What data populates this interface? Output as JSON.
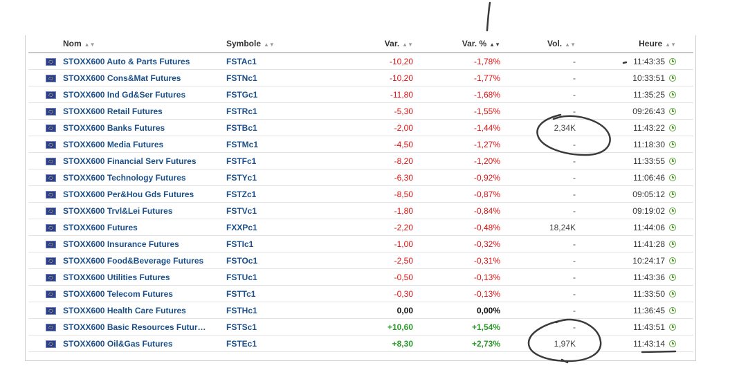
{
  "headers": {
    "name": "Nom",
    "symbol": "Symbole",
    "change": "Var.",
    "change_pct": "Var. %",
    "volume": "Vol.",
    "time": "Heure"
  },
  "sort_icons": {
    "inactive": "⇕",
    "active": "⬍"
  },
  "rows": [
    {
      "name": "STOXX600 Auto & Parts Futures",
      "symbol": "FSTAc1",
      "change": "-10,20",
      "change_pct": "-1,78%",
      "volume": "-",
      "time": "11:43:35",
      "trend": "neg"
    },
    {
      "name": "STOXX600 Cons&Mat Futures",
      "symbol": "FSTNc1",
      "change": "-10,20",
      "change_pct": "-1,77%",
      "volume": "-",
      "time": "10:33:51",
      "trend": "neg"
    },
    {
      "name": "STOXX600 Ind Gd&Ser Futures",
      "symbol": "FSTGc1",
      "change": "-11,80",
      "change_pct": "-1,68%",
      "volume": "-",
      "time": "11:35:25",
      "trend": "neg"
    },
    {
      "name": "STOXX600 Retail Futures",
      "symbol": "FSTRc1",
      "change": "-5,30",
      "change_pct": "-1,55%",
      "volume": "-",
      "time": "09:26:43",
      "trend": "neg"
    },
    {
      "name": "STOXX600 Banks Futures",
      "symbol": "FSTBc1",
      "change": "-2,00",
      "change_pct": "-1,44%",
      "volume": "2,34K",
      "time": "11:43:22",
      "trend": "neg"
    },
    {
      "name": "STOXX600 Media Futures",
      "symbol": "FSTMc1",
      "change": "-4,50",
      "change_pct": "-1,27%",
      "volume": "-",
      "time": "11:18:30",
      "trend": "neg"
    },
    {
      "name": "STOXX600 Financial Serv Futures",
      "symbol": "FSTFc1",
      "change": "-8,20",
      "change_pct": "-1,20%",
      "volume": "-",
      "time": "11:33:55",
      "trend": "neg"
    },
    {
      "name": "STOXX600 Technology Futures",
      "symbol": "FSTYc1",
      "change": "-6,30",
      "change_pct": "-0,92%",
      "volume": "-",
      "time": "11:06:46",
      "trend": "neg"
    },
    {
      "name": "STOXX600 Per&Hou Gds Futures",
      "symbol": "FSTZc1",
      "change": "-8,50",
      "change_pct": "-0,87%",
      "volume": "-",
      "time": "09:05:12",
      "trend": "neg"
    },
    {
      "name": "STOXX600 Trvl&Lei Futures",
      "symbol": "FSTVc1",
      "change": "-1,80",
      "change_pct": "-0,84%",
      "volume": "-",
      "time": "09:19:02",
      "trend": "neg"
    },
    {
      "name": "STOXX600 Futures",
      "symbol": "FXXPc1",
      "change": "-2,20",
      "change_pct": "-0,48%",
      "volume": "18,24K",
      "time": "11:44:06",
      "trend": "neg"
    },
    {
      "name": "STOXX600 Insurance Futures",
      "symbol": "FSTIc1",
      "change": "-1,00",
      "change_pct": "-0,32%",
      "volume": "-",
      "time": "11:41:28",
      "trend": "neg"
    },
    {
      "name": "STOXX600 Food&Beverage Futures",
      "symbol": "FSTOc1",
      "change": "-2,50",
      "change_pct": "-0,31%",
      "volume": "-",
      "time": "10:24:17",
      "trend": "neg"
    },
    {
      "name": "STOXX600 Utilities Futures",
      "symbol": "FSTUc1",
      "change": "-0,50",
      "change_pct": "-0,13%",
      "volume": "-",
      "time": "11:43:36",
      "trend": "neg"
    },
    {
      "name": "STOXX600 Telecom Futures",
      "symbol": "FSTTc1",
      "change": "-0,30",
      "change_pct": "-0,13%",
      "volume": "-",
      "time": "11:33:50",
      "trend": "neg"
    },
    {
      "name": "STOXX600 Health Care Futures",
      "symbol": "FSTHc1",
      "change": "0,00",
      "change_pct": "0,00%",
      "volume": "-",
      "time": "11:36:45",
      "trend": "zero"
    },
    {
      "name": "STOXX600 Basic Resources Futur…",
      "symbol": "FSTSc1",
      "change": "+10,60",
      "change_pct": "+1,54%",
      "volume": "-",
      "time": "11:43:51",
      "trend": "pos"
    },
    {
      "name": "STOXX600 Oil&Gas Futures",
      "symbol": "FSTEc1",
      "change": "+8,30",
      "change_pct": "+2,73%",
      "volume": "1,97K",
      "time": "11:43:14",
      "trend": "pos"
    }
  ],
  "icons": {
    "flag": "eu-flag-icon",
    "clock": "clock-icon",
    "sort": "sort-icon"
  },
  "colors": {
    "negative": "#e11010",
    "positive": "#2a9a2a",
    "link": "#1a4f8a",
    "clock": "#5aa832",
    "ink": "#3a3a3a"
  }
}
